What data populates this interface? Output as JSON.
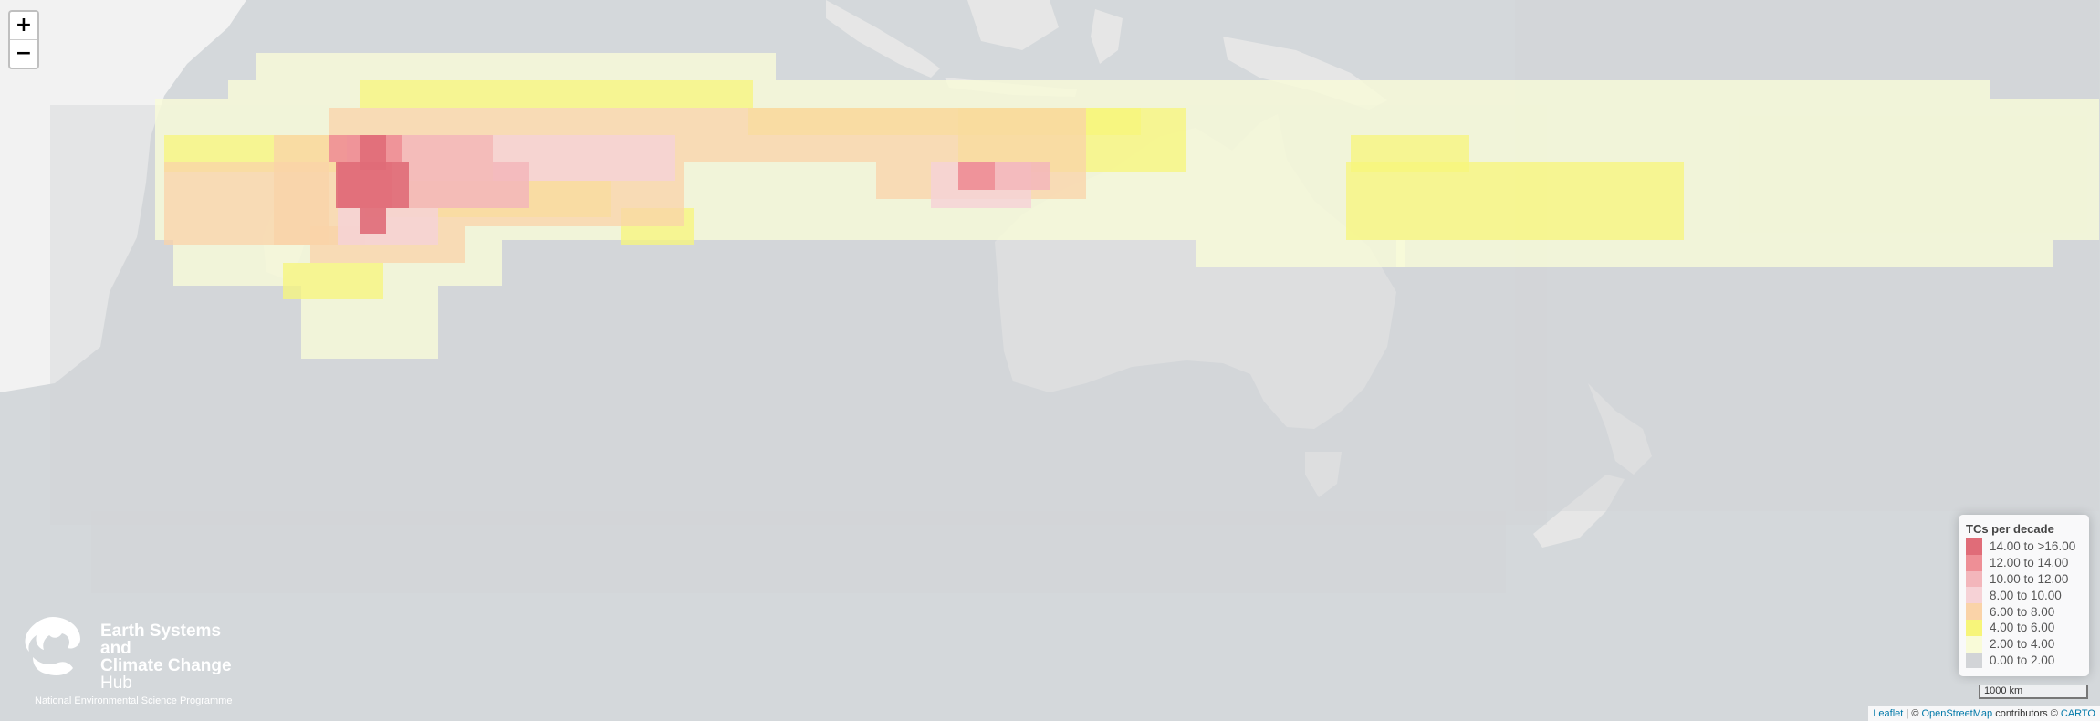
{
  "zoom": {
    "in_label": "+",
    "out_label": "−"
  },
  "legend": {
    "title": "TCs per decade",
    "items": [
      {
        "label": "14.00 to >16.00",
        "color": "#e06c78"
      },
      {
        "label": "12.00 to 14.00",
        "color": "#ee8f96"
      },
      {
        "label": "10.00 to 12.00",
        "color": "#f3b6bb"
      },
      {
        "label": "8.00 to 10.00",
        "color": "#f6d2d6"
      },
      {
        "label": "6.00 to 8.00",
        "color": "#fad3a8"
      },
      {
        "label": "4.00 to 6.00",
        "color": "#f7f57a"
      },
      {
        "label": "2.00 to 4.00",
        "color": "#f9fbd8"
      },
      {
        "label": "0.00 to 2.00",
        "color": "#d2d4d7"
      }
    ]
  },
  "scale": {
    "label": "1000 km"
  },
  "attribution": {
    "leaflet": "Leaflet",
    "separator": " | © ",
    "osm": "OpenStreetMap",
    "contributors": " contributors © ",
    "carto": "CARTO"
  },
  "logo": {
    "name": "Earth Systems and Climate Change Hub",
    "line1": "Earth Systems and",
    "line2": "Climate Change",
    "line3": "Hub",
    "subtitle": "National Environmental Science Programme"
  },
  "colors": {
    "ocean": "#d4d8db",
    "land": "#e6e6e6",
    "land_africa": "#f2f2f2"
  }
}
